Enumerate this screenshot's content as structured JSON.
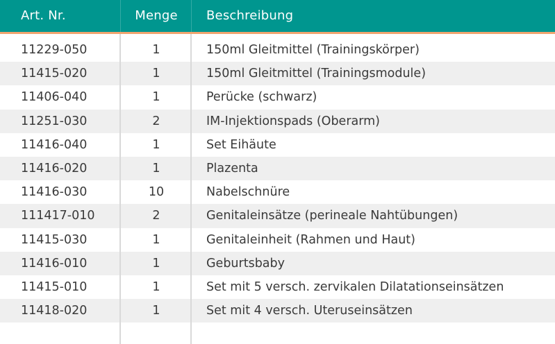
{
  "header": {
    "col_art": "Art. Nr.",
    "col_menge": "Menge",
    "col_desc": "Beschreibung"
  },
  "rows": [
    {
      "art": "11229-050",
      "menge": "1",
      "desc": "150ml Gleitmittel (Trainingskörper)"
    },
    {
      "art": "11415-020",
      "menge": "1",
      "desc": "150ml Gleitmittel (Trainingsmodule)"
    },
    {
      "art": "11406-040",
      "menge": "1",
      "desc": "Perücke (schwarz)"
    },
    {
      "art": "11251-030",
      "menge": "2",
      "desc": "IM-Injektionspads (Oberarm)"
    },
    {
      "art": "11416-040",
      "menge": "1",
      "desc": "Set Eihäute"
    },
    {
      "art": "11416-020",
      "menge": "1",
      "desc": "Plazenta"
    },
    {
      "art": "11416-030",
      "menge": "10",
      "desc": "Nabelschnüre"
    },
    {
      "art": "111417-010",
      "menge": "2",
      "desc": "Genitaleinsätze (perineale Nahtübungen)"
    },
    {
      "art": "11415-030",
      "menge": "1",
      "desc": "Genitaleinheit (Rahmen und Haut)"
    },
    {
      "art": "11416-010",
      "menge": "1",
      "desc": "Geburtsbaby"
    },
    {
      "art": "11415-010",
      "menge": "1",
      "desc": "Set mit 5 versch. zervikalen Dilatationseinsätzen"
    },
    {
      "art": "11418-020",
      "menge": "1",
      "desc": "Set mit 4 versch. Uteruseinsätzen"
    }
  ],
  "colors": {
    "header_bg": "#00968f",
    "header_rule": "#f0a46f",
    "row_shade": "#efefef"
  }
}
